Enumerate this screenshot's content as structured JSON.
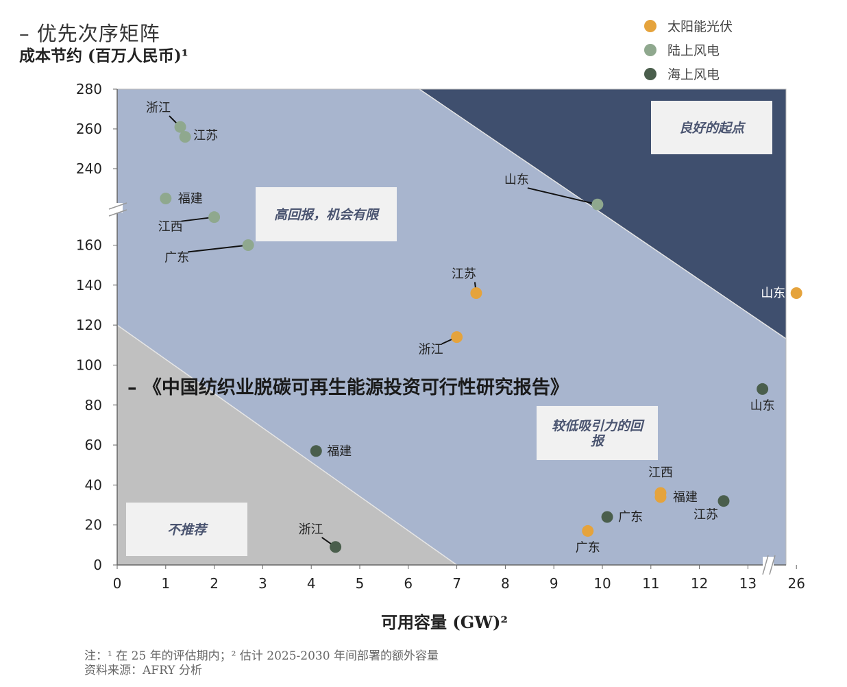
{
  "header": {
    "title": "–  优先次序矩阵",
    "subtitle": "成本节约 (百万人民币)¹"
  },
  "legend": [
    {
      "label": "太阳能光伏",
      "color": "#e5a33c"
    },
    {
      "label": "陆上风电",
      "color": "#8fa88e"
    },
    {
      "label": "海上风电",
      "color": "#4a5e4c"
    }
  ],
  "overlay_title": "–  《中国纺织业脱碳可再生能源投资可行性研究报告》",
  "footnotes": {
    "note": "注：¹ 在 25 年的评估期内；² 估计 2025-2030 年间部署的额外容量",
    "source": "资料来源：AFRY 分析"
  },
  "chart_data": {
    "type": "scatter",
    "xlabel": "可用容量 (GW)²",
    "ylabel": "成本节约 (百万人民币)¹",
    "x_ticks": [
      "0",
      "1",
      "2",
      "3",
      "4",
      "5",
      "6",
      "7",
      "8",
      "9",
      "10",
      "11",
      "12",
      "13",
      "26"
    ],
    "y_ticks": [
      "0",
      "20",
      "40",
      "60",
      "80",
      "100",
      "120",
      "140",
      "160",
      "240",
      "260",
      "280"
    ],
    "x_axis_break": "between 13 and 26",
    "y_axis_break": "between 160 and 240",
    "regions": [
      {
        "label": "不推荐",
        "color": "#c0c0c0"
      },
      {
        "label": "较低吸引力的回报",
        "color": "#a8b5ce"
      },
      {
        "label": "高回报，机会有限",
        "color": "#a8b5ce"
      },
      {
        "label": "良好的起点",
        "color": "#3f4f6e"
      }
    ],
    "series": [
      {
        "name": "太阳能光伏",
        "color": "#e5a33c",
        "points": [
          {
            "label": "江苏",
            "x": 7.4,
            "y": 136
          },
          {
            "label": "浙江",
            "x": 7.0,
            "y": 114
          },
          {
            "label": "山东",
            "x": 26,
            "y": 136
          },
          {
            "label": "江西",
            "x": 11.2,
            "y": 36
          },
          {
            "label": "福建",
            "x": 11.2,
            "y": 34
          },
          {
            "label": "广东",
            "x": 9.7,
            "y": 17
          }
        ]
      },
      {
        "name": "陆上风电",
        "color": "#8fa88e",
        "points": [
          {
            "label": "浙江",
            "x": 1.3,
            "y": 261
          },
          {
            "label": "江苏",
            "x": 1.4,
            "y": 256
          },
          {
            "label": "福建",
            "x": 1.0,
            "y": 225
          },
          {
            "label": "江西",
            "x": 2.0,
            "y": 174
          },
          {
            "label": "广东",
            "x": 2.7,
            "y": 160
          },
          {
            "label": "山东",
            "x": 9.9,
            "y": 222
          }
        ]
      },
      {
        "name": "海上风电",
        "color": "#4a5e4c",
        "points": [
          {
            "label": "山东",
            "x": 13.3,
            "y": 88
          },
          {
            "label": "福建",
            "x": 4.1,
            "y": 57
          },
          {
            "label": "江苏",
            "x": 12.5,
            "y": 32
          },
          {
            "label": "广东",
            "x": 10.1,
            "y": 24
          },
          {
            "label": "浙江",
            "x": 4.5,
            "y": 9
          }
        ]
      }
    ]
  }
}
